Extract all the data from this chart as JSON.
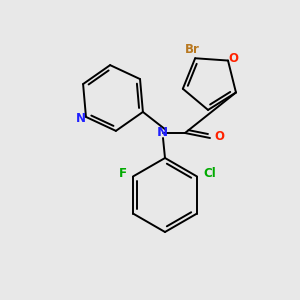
{
  "background_color": "#e8e8e8",
  "bond_color": "#000000",
  "atom_colors": {
    "Br": "#b87820",
    "O_furan": "#ff2200",
    "N": "#2020ff",
    "O_carbonyl": "#ff2200",
    "F": "#00aa00",
    "Cl": "#00aa00",
    "N_pyridine": "#2020ff"
  },
  "figsize": [
    3.0,
    3.0
  ],
  "dpi": 100
}
